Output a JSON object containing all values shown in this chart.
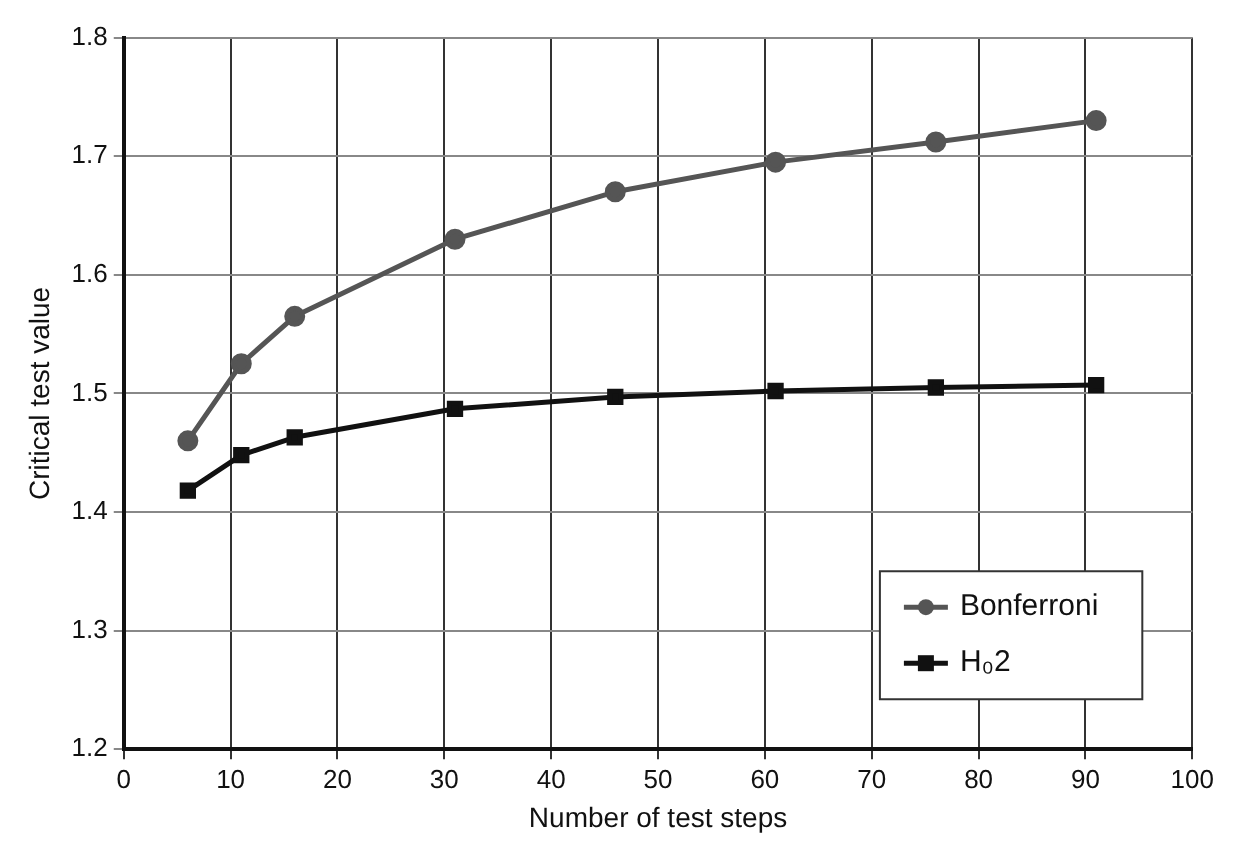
{
  "chart_data": {
    "type": "line",
    "xlabel": "Number of test steps",
    "ylabel": "Critical test value",
    "x": [
      6,
      11,
      16,
      31,
      46,
      61,
      76,
      91
    ],
    "series": [
      {
        "name": "Bonferroni",
        "color": "#555555",
        "marker": "circle",
        "values": [
          1.46,
          1.525,
          1.565,
          1.63,
          1.67,
          1.695,
          1.712,
          1.73
        ]
      },
      {
        "name": "H₀2",
        "color": "#111111",
        "marker": "square",
        "values": [
          1.418,
          1.448,
          1.463,
          1.487,
          1.497,
          1.502,
          1.505,
          1.507
        ]
      }
    ],
    "xlim": [
      0,
      100
    ],
    "xticks": [
      0,
      10,
      20,
      30,
      40,
      50,
      60,
      70,
      80,
      90,
      100
    ],
    "ylim": [
      1.2,
      1.8
    ],
    "yticks": [
      1.2,
      1.3,
      1.4,
      1.5,
      1.6,
      1.7,
      1.8
    ],
    "grid": true,
    "legend": "bottom right"
  }
}
